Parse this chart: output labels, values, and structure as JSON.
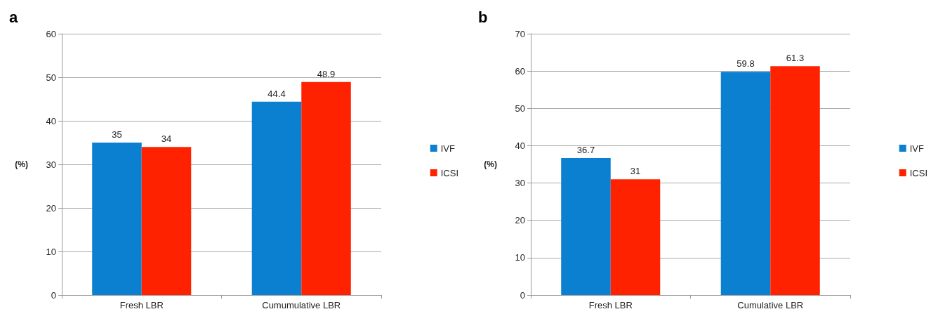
{
  "chart_data": [
    {
      "type": "bar",
      "title": "a",
      "ylabel": "(%)",
      "categories": [
        "Fresh LBR",
        "Cumumulative LBR"
      ],
      "series": [
        {
          "name": "IVF",
          "color": "#0b7fd0",
          "values": [
            35,
            44.4
          ]
        },
        {
          "name": "ICSI",
          "color": "#ff2200",
          "values": [
            34,
            48.9
          ]
        }
      ],
      "ylim": [
        0,
        60
      ],
      "yticks": [
        0,
        10,
        20,
        30,
        40,
        50,
        60
      ],
      "grid": "y",
      "legend": "right",
      "data_labels": true
    },
    {
      "type": "bar",
      "title": "b",
      "ylabel": "(%)",
      "categories": [
        "Fresh LBR",
        "Cumulative LBR"
      ],
      "series": [
        {
          "name": "IVF",
          "color": "#0b7fd0",
          "values": [
            36.7,
            59.8
          ]
        },
        {
          "name": "ICSI",
          "color": "#ff2200",
          "values": [
            31,
            61.3
          ]
        }
      ],
      "ylim": [
        0,
        70
      ],
      "yticks": [
        0,
        10,
        20,
        30,
        40,
        50,
        60,
        70
      ],
      "grid": "y",
      "legend": "right",
      "data_labels": true
    }
  ]
}
